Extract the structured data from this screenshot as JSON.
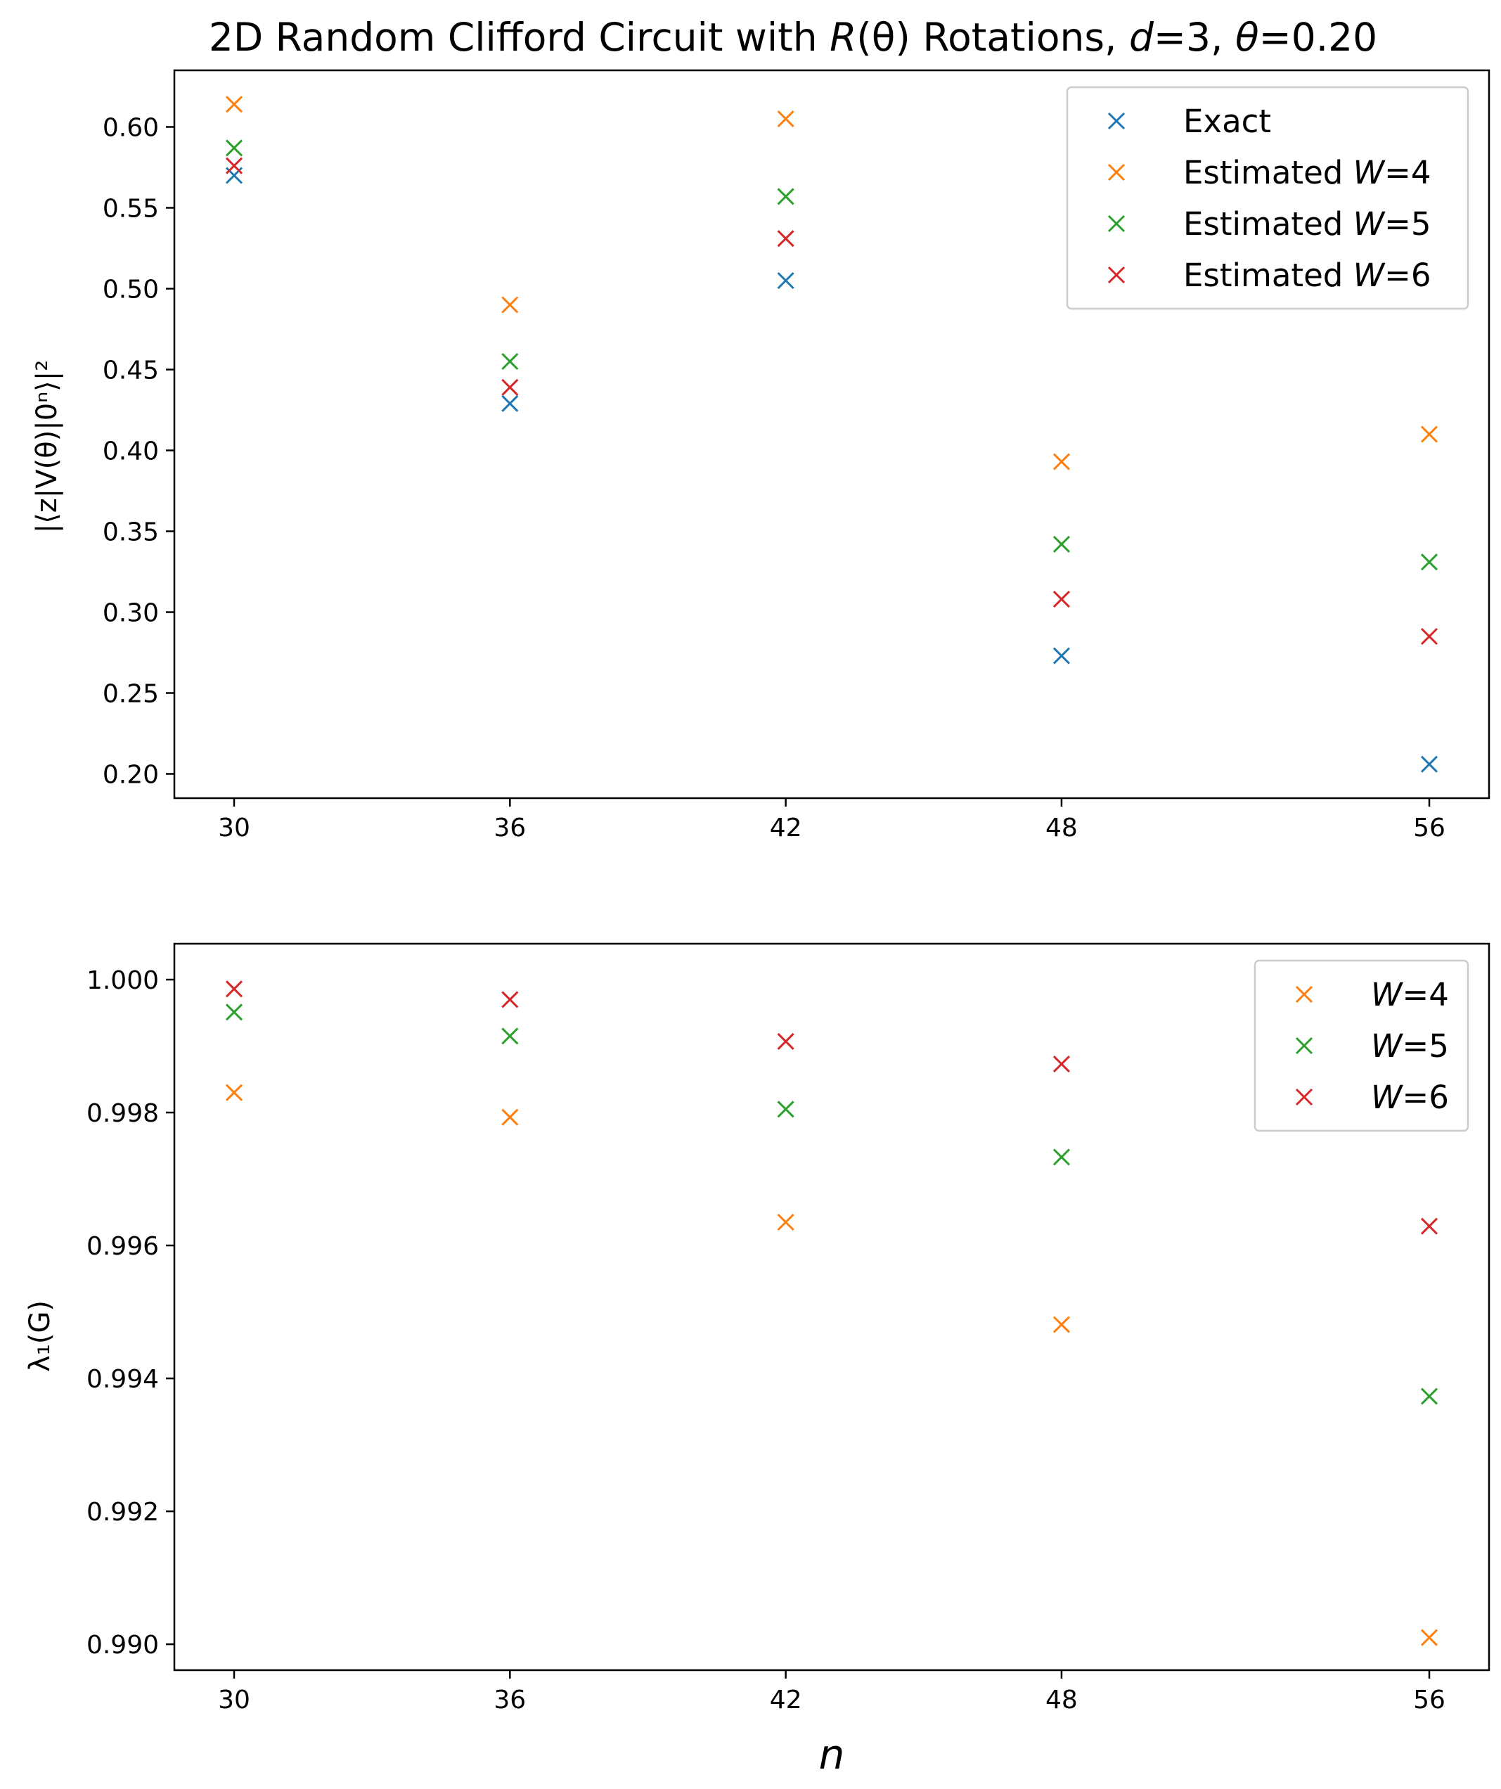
{
  "chart_data": [
    {
      "type": "scatter",
      "title": "2D Random Clifford Circuit with R(θ) Rotations, d=3, θ=0.20",
      "title_parts": {
        "prefix": "2D Random Clifford Circuit with ",
        "r": "R",
        "theta_paren": "(θ)",
        "mid": " Rotations, ",
        "d": "d",
        "d_val": "=3, ",
        "theta": "θ",
        "theta_val": "=0.20"
      },
      "xlabel": "",
      "ylabel": "|⟨z|V(θ)|0ⁿ⟩|²",
      "x": [
        30,
        36,
        42,
        48,
        56
      ],
      "x_ticks": [
        "30",
        "36",
        "42",
        "48",
        "56"
      ],
      "xlim": [
        28.7,
        57.3
      ],
      "ylim": [
        0.185,
        0.635
      ],
      "y_ticks": [
        0.2,
        0.25,
        0.3,
        0.35,
        0.4,
        0.45,
        0.5,
        0.55,
        0.6
      ],
      "y_tick_labels": [
        "0.20",
        "0.25",
        "0.30",
        "0.35",
        "0.40",
        "0.45",
        "0.50",
        "0.55",
        "0.60"
      ],
      "legend_position": "upper right",
      "series": [
        {
          "name": "Exact",
          "label_plain": "Exact",
          "label_var": "",
          "label_val": "",
          "color": "#1f77b4",
          "values": [
            0.57,
            0.429,
            0.505,
            0.273,
            0.206
          ]
        },
        {
          "name": "Estimated W=4",
          "label_plain": "Estimated ",
          "label_var": "W",
          "label_val": "=4",
          "color": "#ff7f0e",
          "values": [
            0.614,
            0.49,
            0.605,
            0.393,
            0.41
          ]
        },
        {
          "name": "Estimated W=5",
          "label_plain": "Estimated ",
          "label_var": "W",
          "label_val": "=5",
          "color": "#2ca02c",
          "values": [
            0.587,
            0.455,
            0.557,
            0.342,
            0.331
          ]
        },
        {
          "name": "Estimated W=6",
          "label_plain": "Estimated ",
          "label_var": "W",
          "label_val": "=6",
          "color": "#d62728",
          "values": [
            0.576,
            0.439,
            0.531,
            0.308,
            0.285
          ]
        }
      ]
    },
    {
      "type": "scatter",
      "title": "",
      "xlabel": "n",
      "ylabel": "λ₁(G)",
      "x": [
        30,
        36,
        42,
        48,
        56
      ],
      "x_ticks": [
        "30",
        "36",
        "42",
        "48",
        "56"
      ],
      "xlim": [
        28.7,
        57.3
      ],
      "ylim": [
        0.98961,
        1.00054
      ],
      "y_ticks": [
        0.99,
        0.992,
        0.994,
        0.996,
        0.998,
        1.0
      ],
      "y_tick_labels": [
        "0.990",
        "0.992",
        "0.994",
        "0.996",
        "0.998",
        "1.000"
      ],
      "legend_position": "upper right",
      "series": [
        {
          "name": "W=4",
          "label_plain": "",
          "label_var": "W",
          "label_val": "=4",
          "color": "#ff7f0e",
          "values": [
            0.9983,
            0.99793,
            0.99635,
            0.99481,
            0.9901
          ]
        },
        {
          "name": "W=5",
          "label_plain": "",
          "label_var": "W",
          "label_val": "=5",
          "color": "#2ca02c",
          "values": [
            0.99951,
            0.99915,
            0.99805,
            0.99733,
            0.99373
          ]
        },
        {
          "name": "W=6",
          "label_plain": "",
          "label_var": "W",
          "label_val": "=6",
          "color": "#d62728",
          "values": [
            0.99986,
            0.9997,
            0.99907,
            0.99873,
            0.99629
          ]
        }
      ]
    }
  ]
}
